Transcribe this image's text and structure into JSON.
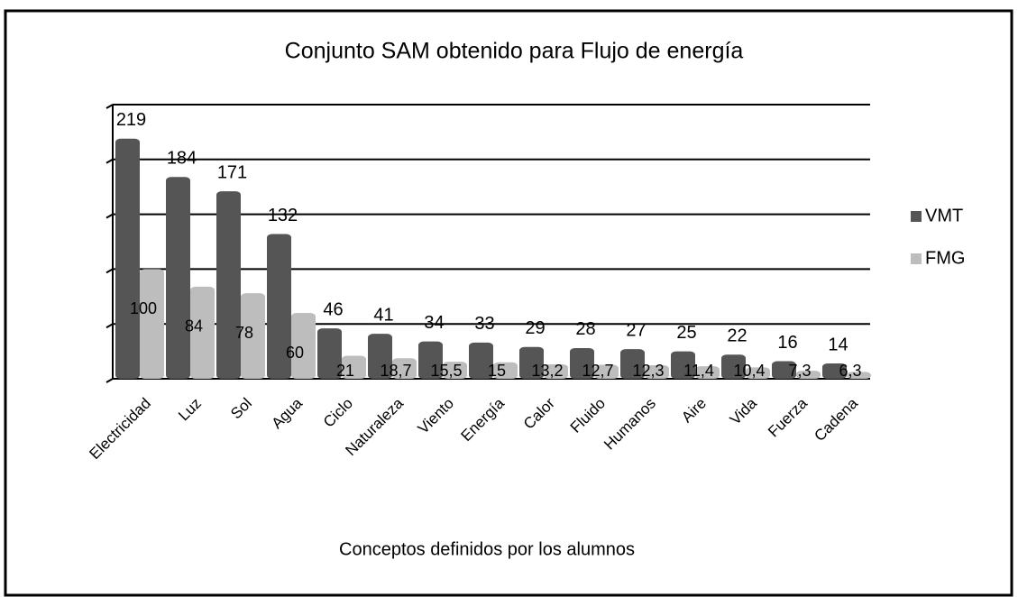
{
  "chart_data": {
    "type": "bar",
    "title": "Conjunto SAM obtenido para Flujo de energía",
    "x_label": "Conceptos definidos por los alumnos",
    "categories": [
      "Electricidad",
      "Luz",
      "Sol",
      "Agua",
      "Ciclo",
      "Naturaleza",
      "Viento",
      "Energía",
      "Calor",
      "Fluido",
      "Humanos",
      "Aire",
      "Vida",
      "Fuerza",
      "Cadena"
    ],
    "series": [
      {
        "name": "VMT",
        "color": "#555555",
        "values": [
          219,
          184,
          171,
          132,
          46,
          41,
          34,
          33,
          29,
          28,
          27,
          25,
          22,
          16,
          14
        ]
      },
      {
        "name": "FMG",
        "color": "#bdbdbd",
        "values": [
          100,
          84,
          78,
          60,
          21,
          18.7,
          15.5,
          15,
          13.2,
          12.7,
          12.3,
          11.4,
          10.4,
          7.3,
          6.3
        ],
        "value_labels": [
          "100",
          "84",
          "78",
          "60",
          "21",
          "18,7",
          "15,5",
          "15",
          "13,2",
          "12,7",
          "12,3",
          "11,4",
          "10,4",
          "7,3",
          "6,3"
        ]
      }
    ],
    "ylim": [
      0,
      250
    ],
    "yticks": [
      0,
      50,
      100,
      150,
      200,
      250
    ],
    "grid": true,
    "legend": "right"
  }
}
